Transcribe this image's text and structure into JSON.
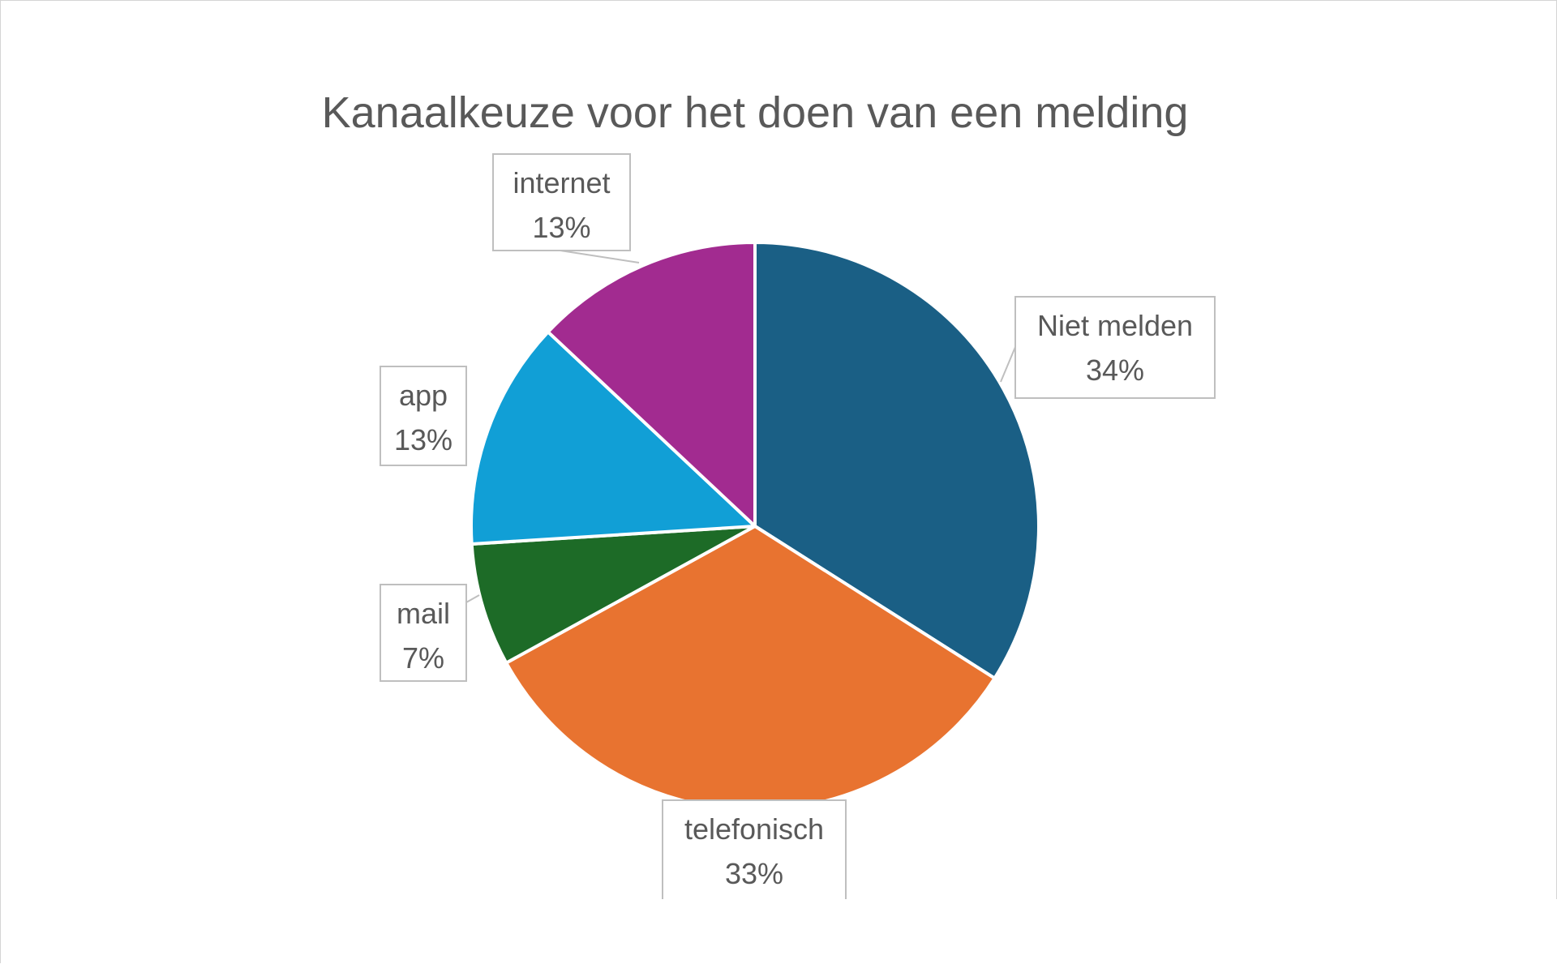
{
  "chart_data": {
    "type": "pie",
    "title": "Kanaalkeuze voor het doen van een melding",
    "slices": [
      {
        "label": "Niet melden",
        "value": 34,
        "value_label": "34%",
        "color": "#1a5f85"
      },
      {
        "label": "telefonisch",
        "value": 33,
        "value_label": "33%",
        "color": "#e87330"
      },
      {
        "label": "mail",
        "value": 7,
        "value_label": "7%",
        "color": "#1d6b27"
      },
      {
        "label": "app",
        "value": 13,
        "value_label": "13%",
        "color": "#119fd6"
      },
      {
        "label": "internet",
        "value": 13,
        "value_label": "13%",
        "color": "#a22b90"
      }
    ],
    "legend": "none",
    "data_labels": "callouts"
  }
}
